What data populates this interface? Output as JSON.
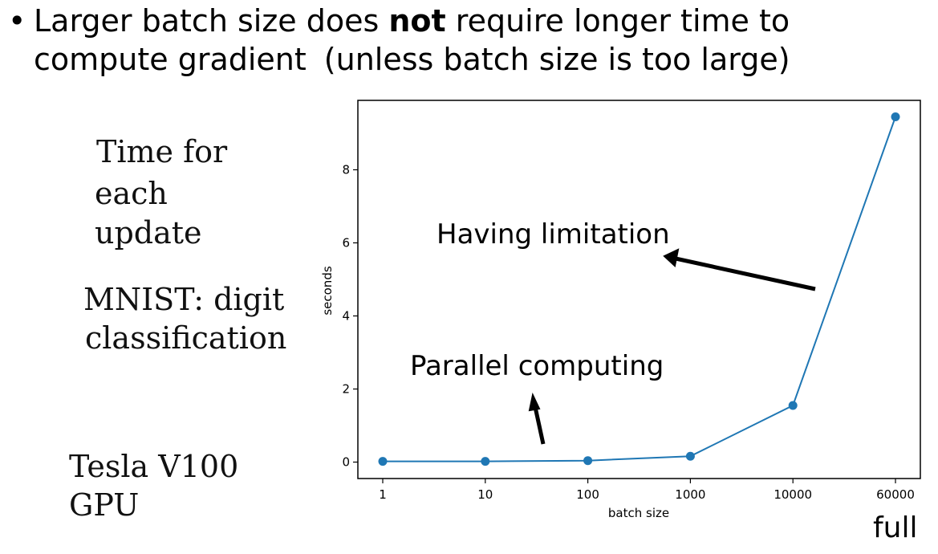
{
  "heading": {
    "bullet": "•",
    "line1_a": "Larger batch size does ",
    "line1_bold": "not",
    "line1_b": " require longer time to",
    "line2_a": "compute gradient",
    "line2_b": "(unless batch size is too large)"
  },
  "left_labels": {
    "time_line1": "Time for",
    "time_line2": "each",
    "time_line3": "update",
    "mnist_line1": "MNIST: digit",
    "mnist_line2": "classification",
    "gpu_line1": "Tesla V100",
    "gpu_line2": "GPU"
  },
  "annotations": {
    "having_limitation": "Having limitation",
    "parallel_computing": "Parallel computing",
    "full": "full"
  },
  "chart_data": {
    "type": "line",
    "categories": [
      "1",
      "10",
      "100",
      "1000",
      "10000",
      "60000"
    ],
    "series": [
      {
        "values": [
          0.02,
          0.02,
          0.04,
          0.16,
          1.55,
          9.45
        ]
      }
    ],
    "xlabel": "batch size",
    "ylabel": "seconds",
    "yticks": [
      0,
      2,
      4,
      6,
      8
    ],
    "ylim": [
      -0.45,
      9.9
    ],
    "line_color": "#1f77b4"
  }
}
